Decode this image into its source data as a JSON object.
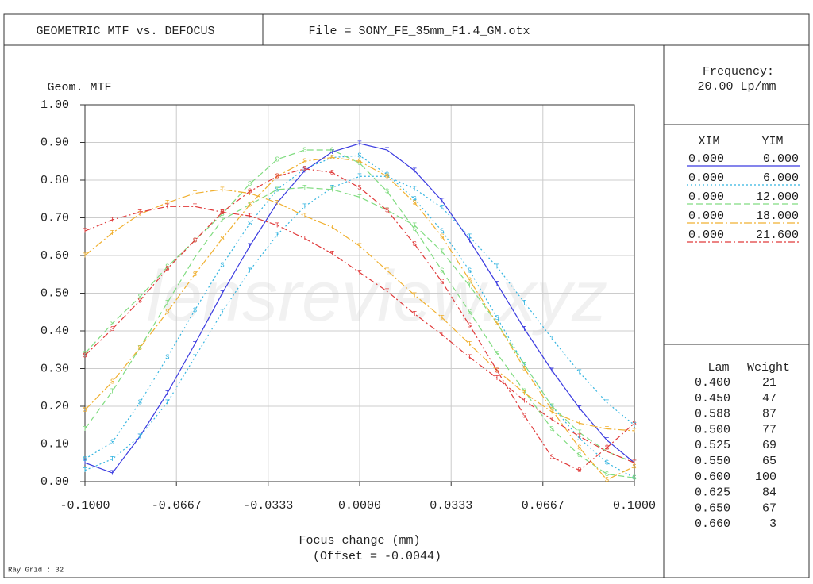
{
  "header": {
    "title": "GEOMETRIC MTF vs. DEFOCUS",
    "file": "File = SONY_FE_35mm_F1.4_GM.otx"
  },
  "frequency": {
    "label": "Frequency:",
    "value": "20.00  Lp/mm"
  },
  "legend": {
    "headers": [
      "XIM",
      "YIM"
    ],
    "rows": [
      {
        "xim": "0.000",
        "yim": "0.000",
        "color": "#3b3be0",
        "dash": "none"
      },
      {
        "xim": "0.000",
        "yim": "6.000",
        "color": "#33b4e0",
        "dash": "2,3"
      },
      {
        "xim": "0.000",
        "yim": "12.000",
        "color": "#80dc80",
        "dash": "8,4"
      },
      {
        "xim": "0.000",
        "yim": "18.000",
        "color": "#f0b030",
        "dash": "10,3,2,3"
      },
      {
        "xim": "0.000",
        "yim": "21.600",
        "color": "#e03a3a",
        "dash": "8,3,2,3"
      }
    ]
  },
  "wavelengths": {
    "headers": [
      "Lam",
      "Weight"
    ],
    "rows": [
      [
        "0.400",
        "21"
      ],
      [
        "0.450",
        "47"
      ],
      [
        "0.588",
        "87"
      ],
      [
        "0.500",
        "77"
      ],
      [
        "0.525",
        "69"
      ],
      [
        "0.550",
        "65"
      ],
      [
        "0.600",
        "100"
      ],
      [
        "0.625",
        "84"
      ],
      [
        "0.650",
        "67"
      ],
      [
        "0.660",
        "3"
      ]
    ]
  },
  "footer": "Ray Grid : 32",
  "watermark": "lensreview.xyz",
  "chart_data": {
    "type": "line",
    "ylabel": "Geom. MTF",
    "xlabel": "Focus change (mm)",
    "xlabel_note": "(Offset = -0.0044)",
    "x": [
      -0.1,
      -0.09,
      -0.08,
      -0.07,
      -0.06,
      -0.05,
      -0.04,
      -0.03,
      -0.02,
      -0.01,
      0,
      0.01,
      0.02,
      0.03,
      0.04,
      0.05,
      0.06,
      0.07,
      0.08,
      0.09,
      0.1
    ],
    "xlim": [
      -0.1,
      0.1
    ],
    "ylim": [
      0,
      1
    ],
    "grid": true,
    "xticks": [
      {
        "value": -0.1,
        "label": "-0.1000"
      },
      {
        "value": -0.0667,
        "label": "-0.0667"
      },
      {
        "value": -0.0333,
        "label": "-0.0333"
      },
      {
        "value": 0,
        "label": "0.0000"
      },
      {
        "value": 0.0333,
        "label": "0.0333"
      },
      {
        "value": 0.0667,
        "label": "0.0667"
      },
      {
        "value": 0.1,
        "label": "0.1000"
      }
    ],
    "yticks": [
      {
        "value": 0,
        "label": "0.00"
      },
      {
        "value": 0.1,
        "label": "0.10"
      },
      {
        "value": 0.2,
        "label": "0.20"
      },
      {
        "value": 0.3,
        "label": "0.30"
      },
      {
        "value": 0.4,
        "label": "0.40"
      },
      {
        "value": 0.5,
        "label": "0.50"
      },
      {
        "value": 0.6,
        "label": "0.60"
      },
      {
        "value": 0.7,
        "label": "0.70"
      },
      {
        "value": 0.8,
        "label": "0.80"
      },
      {
        "value": 0.9,
        "label": "0.90"
      },
      {
        "value": 1,
        "label": "1.00"
      }
    ],
    "series": [
      {
        "marker": "T",
        "color": "#3b3be0",
        "dash": "none",
        "values": [
          0.05,
          0.023,
          0.12,
          0.235,
          0.365,
          0.5,
          0.625,
          0.74,
          0.825,
          0.875,
          0.897,
          0.88,
          0.825,
          0.745,
          0.64,
          0.525,
          0.405,
          0.295,
          0.195,
          0.11,
          0.05
        ]
      },
      {
        "marker": "S",
        "color": "#33b4e0",
        "dash": "2,3",
        "values": [
          0.06,
          0.105,
          0.21,
          0.33,
          0.455,
          0.575,
          0.685,
          0.775,
          0.83,
          0.86,
          0.865,
          0.815,
          0.75,
          0.665,
          0.56,
          0.435,
          0.31,
          0.2,
          0.115,
          0.05,
          0.01
        ]
      },
      {
        "marker": "T",
        "color": "#33b4e0",
        "dash": "2,3",
        "values": [
          0.03,
          0.06,
          0.12,
          0.21,
          0.33,
          0.45,
          0.56,
          0.655,
          0.73,
          0.78,
          0.81,
          0.81,
          0.777,
          0.727,
          0.65,
          0.57,
          0.475,
          0.38,
          0.29,
          0.21,
          0.15
        ]
      },
      {
        "marker": "S",
        "color": "#80dc80",
        "dash": "8,4",
        "values": [
          0.34,
          0.42,
          0.49,
          0.57,
          0.64,
          0.71,
          0.79,
          0.855,
          0.88,
          0.88,
          0.845,
          0.77,
          0.67,
          0.56,
          0.45,
          0.34,
          0.24,
          0.14,
          0.07,
          0.02,
          0.01
        ]
      },
      {
        "marker": "T",
        "color": "#80dc80",
        "dash": "8,4",
        "values": [
          0.14,
          0.24,
          0.355,
          0.475,
          0.595,
          0.695,
          0.735,
          0.775,
          0.78,
          0.775,
          0.755,
          0.72,
          0.68,
          0.61,
          0.52,
          0.42,
          0.31,
          0.2,
          0.13,
          0.08,
          0.05
        ]
      },
      {
        "marker": "S",
        "color": "#f0b030",
        "dash": "10,3,2,3",
        "values": [
          0.19,
          0.265,
          0.355,
          0.45,
          0.55,
          0.645,
          0.735,
          0.81,
          0.85,
          0.86,
          0.85,
          0.81,
          0.74,
          0.65,
          0.535,
          0.42,
          0.3,
          0.19,
          0.09,
          0.005,
          0.04
        ]
      },
      {
        "marker": "T",
        "color": "#f0b030",
        "dash": "10,3,2,3",
        "values": [
          0.6,
          0.66,
          0.71,
          0.74,
          0.765,
          0.775,
          0.765,
          0.74,
          0.705,
          0.675,
          0.625,
          0.56,
          0.495,
          0.435,
          0.365,
          0.295,
          0.235,
          0.185,
          0.155,
          0.14,
          0.135
        ]
      },
      {
        "marker": "S",
        "color": "#e03a3a",
        "dash": "8,3,2,3",
        "values": [
          0.335,
          0.405,
          0.48,
          0.565,
          0.64,
          0.715,
          0.77,
          0.81,
          0.83,
          0.82,
          0.78,
          0.72,
          0.63,
          0.53,
          0.415,
          0.295,
          0.175,
          0.065,
          0.03,
          0.09,
          0.155
        ]
      },
      {
        "marker": "T",
        "color": "#e03a3a",
        "dash": "8,3,2,3",
        "values": [
          0.665,
          0.695,
          0.715,
          0.73,
          0.73,
          0.715,
          0.705,
          0.68,
          0.645,
          0.605,
          0.555,
          0.505,
          0.445,
          0.39,
          0.33,
          0.275,
          0.215,
          0.165,
          0.12,
          0.08,
          0.05
        ]
      }
    ]
  }
}
